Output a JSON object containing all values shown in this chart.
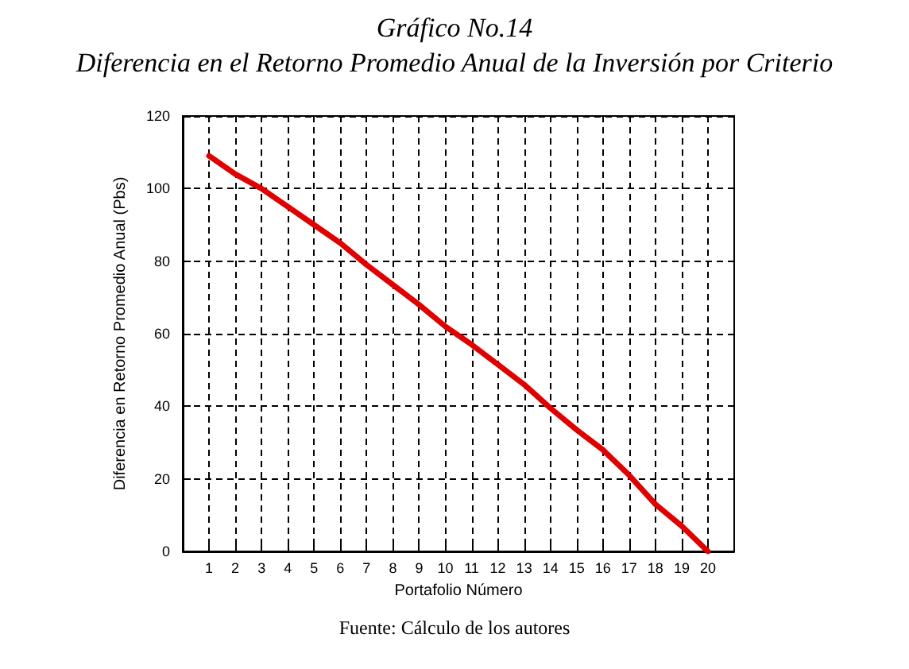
{
  "chart_data": {
    "type": "line",
    "title": "Gráfico No.14",
    "subtitle": "Diferencia en el Retorno Promedio Anual de la Inversión por Criterio",
    "xlabel": "Portafolio Número",
    "ylabel": "Diferencia en Retorno Promedio Anual (Pbs)",
    "annotations": [
      "Fuente: Cálculo de los autores"
    ],
    "x": [
      1,
      2,
      3,
      4,
      5,
      6,
      7,
      8,
      9,
      10,
      11,
      12,
      13,
      14,
      15,
      16,
      17,
      18,
      19,
      20
    ],
    "series": [
      {
        "color": "#e00000",
        "values": [
          109,
          104,
          100,
          95,
          90,
          85,
          79,
          73.5,
          68,
          62,
          57,
          51.5,
          46,
          39.5,
          33.5,
          28,
          21,
          13,
          7,
          0
        ]
      }
    ],
    "xlim": [
      0,
      21
    ],
    "xticks": [
      1,
      2,
      3,
      4,
      5,
      6,
      7,
      8,
      9,
      10,
      11,
      12,
      13,
      14,
      15,
      16,
      17,
      18,
      19,
      20
    ],
    "ylim": [
      0,
      120
    ],
    "yticks": [
      0,
      20,
      40,
      60,
      80,
      100,
      120
    ],
    "grid": true,
    "marker": "none",
    "line_style": "solid"
  }
}
